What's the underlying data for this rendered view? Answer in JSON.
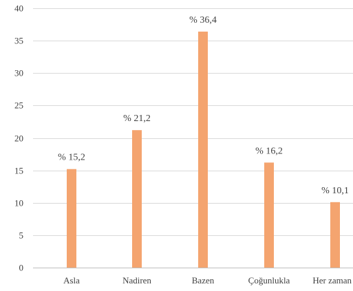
{
  "chart_data": {
    "type": "bar",
    "title": "",
    "xlabel": "",
    "ylabel": "",
    "ylim": [
      0,
      40
    ],
    "yticks": [
      0,
      5,
      10,
      15,
      20,
      25,
      30,
      35,
      40
    ],
    "ytick_labels": [
      "0",
      "5",
      "10",
      "15",
      "20",
      "25",
      "30",
      "35",
      "40"
    ],
    "grid": "horizontal",
    "legend": "none",
    "categories": [
      "Asla",
      "Nadiren",
      "Bazen",
      "Çoğunlukla",
      "Her zaman"
    ],
    "values": [
      15.2,
      21.2,
      36.4,
      16.2,
      10.1
    ],
    "data_labels": [
      "% 15,2",
      "% 21,2",
      "% 36,4",
      "% 16,2",
      "% 10,1"
    ],
    "colors": {
      "bar": "#F4A46F",
      "grid": "#D9D9D9",
      "axis": "#BFBFBF",
      "text": "#404040"
    }
  }
}
